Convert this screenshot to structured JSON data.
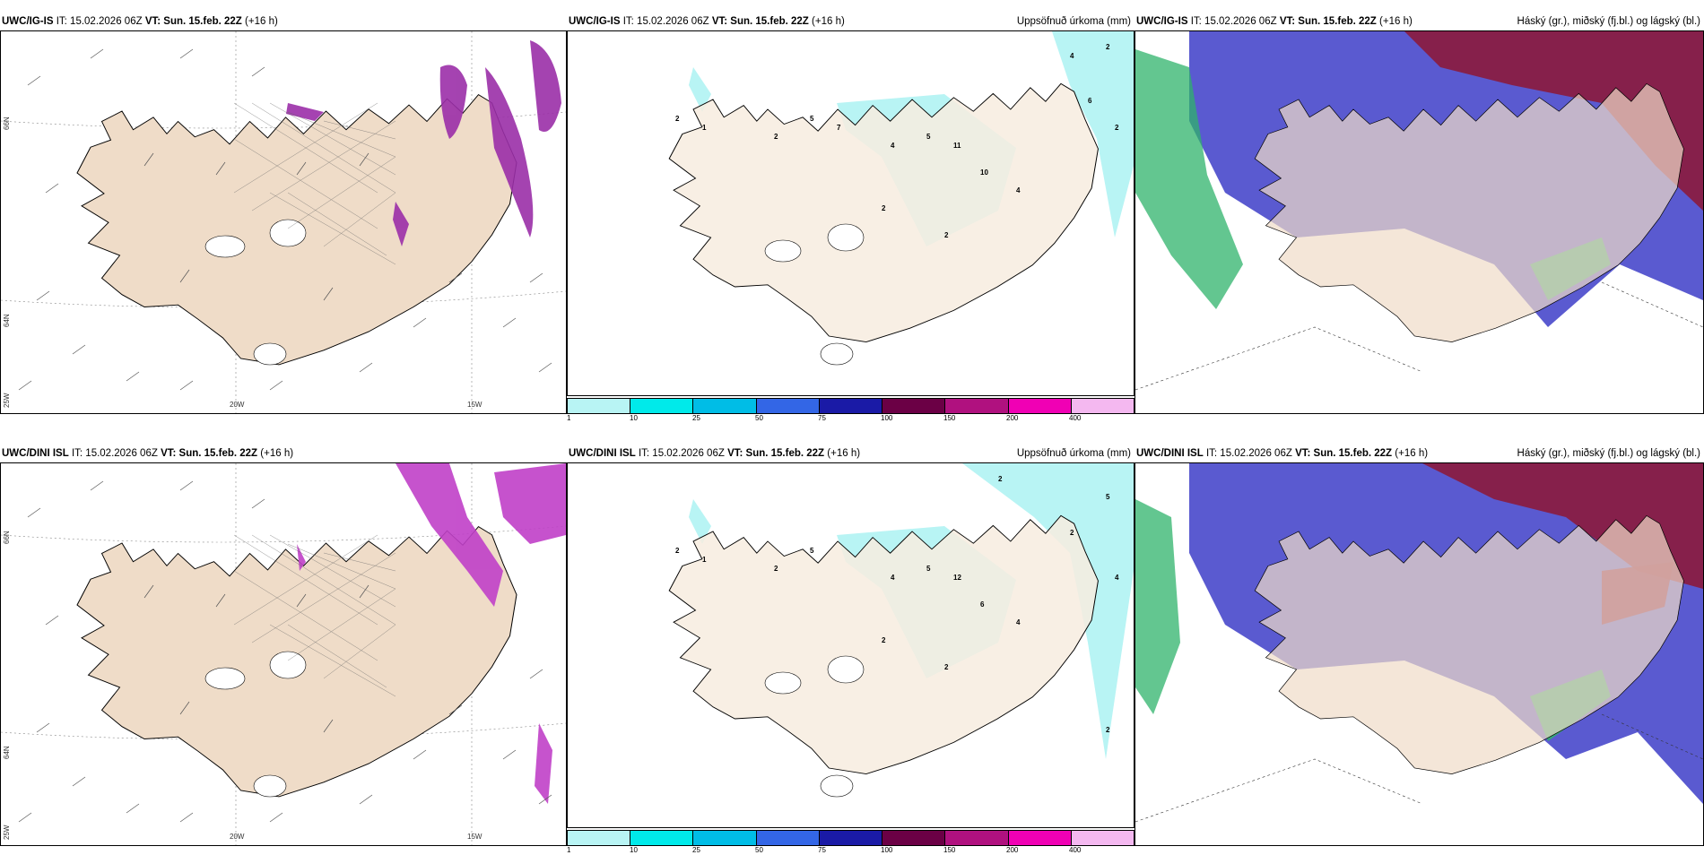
{
  "panels": {
    "p1": {
      "model": "UWC/IG-IS",
      "it_label": "IT:",
      "it": "15.02.2026 06Z",
      "vt_label": "VT:",
      "vt": "Sun. 15.feb. 22Z",
      "lead": "(+16 h)"
    },
    "p2": {
      "model": "UWC/IG-IS",
      "it_label": "IT:",
      "it": "15.02.2026 06Z",
      "vt_label": "VT:",
      "vt": "Sun. 15.feb. 22Z",
      "lead": "(+16 h)",
      "right_title": "Uppsöfnuð úrkoma (mm)"
    },
    "p3": {
      "model": "UWC/IG-IS",
      "it_label": "IT:",
      "it": "15.02.2026 06Z",
      "vt_label": "VT:",
      "vt": "Sun. 15.feb. 22Z",
      "lead": "(+16 h)",
      "right_title": "Háský (gr.), miðský (fj.bl.) og lágský (bl.)"
    },
    "p4": {
      "model": "UWC/DINI ISL",
      "it_label": "IT:",
      "it": "15.02.2026 06Z",
      "vt_label": "VT:",
      "vt": "Sun. 15.feb. 22Z",
      "lead": "(+16 h)"
    },
    "p5": {
      "model": "UWC/DINI ISL",
      "it_label": "IT:",
      "it": "15.02.2026 06Z",
      "vt_label": "VT:",
      "vt": "Sun. 15.feb. 22Z",
      "lead": "(+16 h)",
      "right_title": "Uppsöfnuð úrkoma (mm)"
    },
    "p6": {
      "model": "UWC/DINI ISL",
      "it_label": "IT:",
      "it": "15.02.2026 06Z",
      "vt_label": "VT:",
      "vt": "Sun. 15.feb. 22Z",
      "lead": "(+16 h)",
      "right_title": "Háský (gr.), miðský (fj.bl.) og lágský (bl.)"
    }
  },
  "axis": {
    "lon_20w": "20W",
    "lon_15w": "15W",
    "lat_66n": "66N",
    "lat_64n": "64N",
    "lon_25w": "25W"
  },
  "colorbar": {
    "ticks": [
      "1",
      "10",
      "25",
      "50",
      "75",
      "100",
      "150",
      "200",
      "400"
    ],
    "colors": [
      "#b8f4f4",
      "#00eaea",
      "#00bde6",
      "#3366e6",
      "#1a1aa6",
      "#6b0045",
      "#b0117f",
      "#f000b4",
      "#f4b8f0"
    ]
  },
  "colors": {
    "land": "#f7ecdf",
    "land_wind": "#efdcc8",
    "precip_light": "#b8f4f4",
    "high_cloud": "#8b1a3c",
    "mid_cloud": "#5a5ad0",
    "low_cloud": "#2fb36b",
    "snow_purple": "#9b2fa8"
  }
}
